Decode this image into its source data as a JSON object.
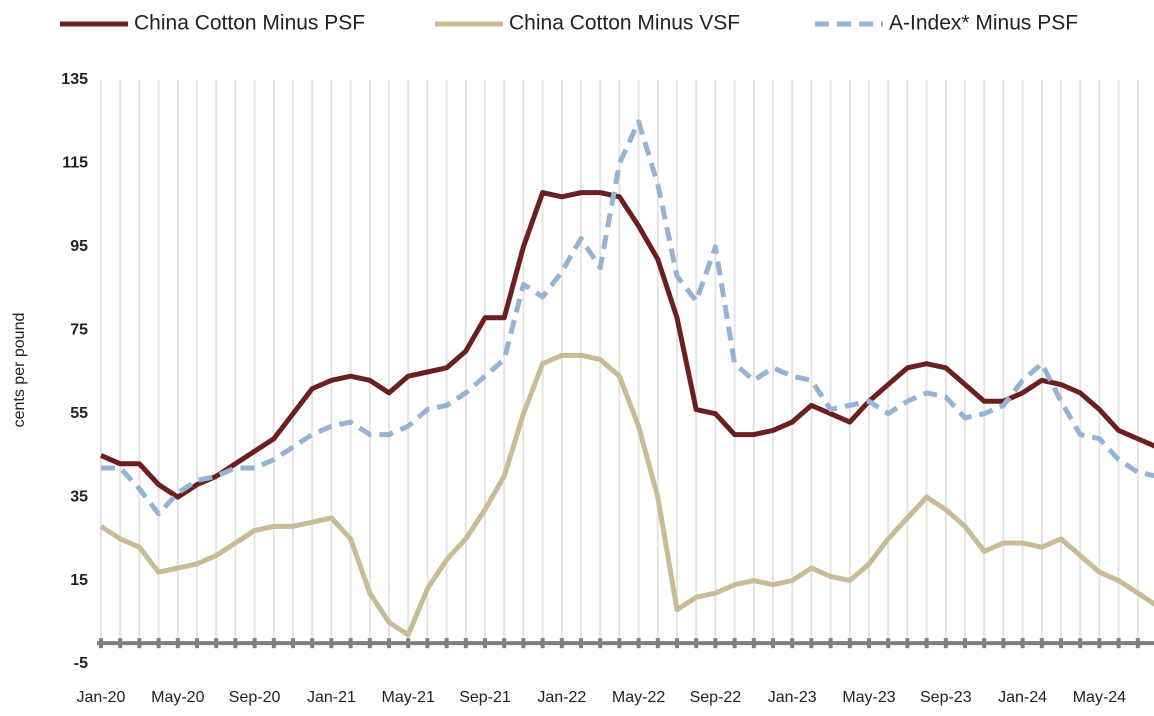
{
  "chart_data": {
    "type": "line",
    "y_label": "cents per pound",
    "categories": [
      "Jan-20",
      null,
      null,
      null,
      "May-20",
      null,
      null,
      null,
      "Sep-20",
      null,
      null,
      null,
      "Jan-21",
      null,
      null,
      null,
      "May-21",
      null,
      null,
      null,
      "Sep-21",
      null,
      null,
      null,
      "Jan-22",
      null,
      null,
      null,
      "May-22",
      null,
      null,
      null,
      "Sep-22",
      null,
      null,
      null,
      "Jan-23",
      null,
      null,
      null,
      "May-23",
      null,
      null,
      null,
      "Sep-23",
      null,
      null,
      null,
      "Jan-24",
      null,
      null,
      null,
      "May-24",
      null,
      null,
      null
    ],
    "series": [
      {
        "name": "China Cotton Minus PSF",
        "color": "#6b1f1f",
        "dashed": false,
        "values": [
          45,
          43,
          43,
          38,
          35,
          38,
          40,
          43,
          46,
          49,
          55,
          61,
          63,
          64,
          63,
          60,
          64,
          65,
          66,
          70,
          78,
          78,
          95,
          108,
          107,
          108,
          108,
          107,
          100,
          92,
          78,
          56,
          55,
          50,
          50,
          51,
          53,
          57,
          55,
          53,
          58,
          62,
          66,
          67,
          66,
          62,
          58,
          58,
          60,
          63,
          62,
          60,
          56,
          51,
          49,
          47
        ]
      },
      {
        "name": "China Cotton Minus VSF",
        "color": "#c9bb95",
        "dashed": false,
        "values": [
          28,
          25,
          23,
          17,
          18,
          19,
          21,
          24,
          27,
          28,
          28,
          29,
          30,
          25,
          12,
          5,
          2,
          13,
          20,
          25,
          32,
          40,
          55,
          67,
          69,
          69,
          68,
          64,
          52,
          35,
          8,
          11,
          12,
          14,
          15,
          14,
          15,
          18,
          16,
          15,
          19,
          25,
          30,
          35,
          32,
          28,
          22,
          24,
          24,
          23,
          25,
          21,
          17,
          15,
          12,
          9
        ]
      },
      {
        "name": "A-Index* Minus PSF",
        "color": "#95b3d7",
        "dashed": true,
        "values": [
          42,
          42,
          37,
          31,
          36,
          39,
          40,
          42,
          42,
          44,
          47,
          50,
          52,
          53,
          50,
          50,
          52,
          56,
          57,
          60,
          64,
          68,
          86,
          83,
          89,
          97,
          90,
          115,
          125,
          110,
          88,
          82,
          95,
          67,
          63,
          66,
          64,
          63,
          56,
          57,
          58,
          55,
          58,
          60,
          59,
          54,
          55,
          57,
          63,
          67,
          58,
          50,
          49,
          44,
          41,
          40
        ]
      }
    ],
    "ylim": [
      -5,
      135
    ],
    "yticks": [
      -5,
      15,
      35,
      55,
      75,
      95,
      115,
      135
    ],
    "grid": true
  }
}
